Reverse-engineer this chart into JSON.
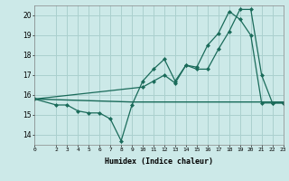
{
  "xlabel": "Humidex (Indice chaleur)",
  "bg_color": "#cce9e8",
  "grid_color": "#aad0ce",
  "line_color": "#1a6b5a",
  "xlim": [
    0,
    23
  ],
  "ylim": [
    13.5,
    20.5
  ],
  "yticks": [
    14,
    15,
    16,
    17,
    18,
    19,
    20
  ],
  "xticks": [
    0,
    2,
    3,
    4,
    5,
    6,
    7,
    8,
    9,
    10,
    11,
    12,
    13,
    14,
    15,
    16,
    17,
    18,
    19,
    20,
    21,
    22,
    23
  ],
  "line1_x": [
    0,
    2,
    3,
    4,
    5,
    6,
    7,
    8,
    9,
    10,
    11,
    12,
    13,
    14,
    15,
    16,
    17,
    18,
    19,
    20,
    21,
    22,
    23
  ],
  "line1_y": [
    15.8,
    15.5,
    15.5,
    15.2,
    15.1,
    15.1,
    14.8,
    13.7,
    15.5,
    16.7,
    17.3,
    17.8,
    16.7,
    17.5,
    17.3,
    17.3,
    18.3,
    19.2,
    20.3,
    20.3,
    17.0,
    15.6,
    15.6
  ],
  "line2_x": [
    0,
    10,
    11,
    12,
    13,
    14,
    15,
    16,
    17,
    18,
    19,
    20,
    21,
    22,
    23
  ],
  "line2_y": [
    15.8,
    16.4,
    16.7,
    17.0,
    16.6,
    17.5,
    17.4,
    18.5,
    19.1,
    20.2,
    19.8,
    19.0,
    15.6,
    15.6,
    15.6
  ],
  "line3_x": [
    0,
    9,
    21,
    23
  ],
  "line3_y": [
    15.8,
    15.65,
    15.65,
    15.65
  ]
}
